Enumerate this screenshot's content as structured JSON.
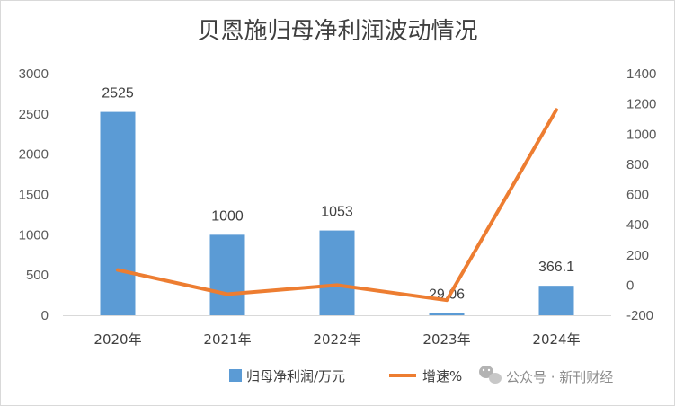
{
  "chart_data": {
    "type": "bar",
    "title": "贝恩施归母净利润波动情况",
    "categories": [
      "2020年",
      "2021年",
      "2022年",
      "2023年",
      "2024年"
    ],
    "series": [
      {
        "name": "归母净利润/万元",
        "type": "bar",
        "axis": "left",
        "color": "#5b9bd5",
        "values": [
          2525,
          1000,
          1053,
          29.06,
          366.1
        ],
        "labels": [
          "2525",
          "1000",
          "1053",
          "29.06",
          "366.1"
        ]
      },
      {
        "name": "增速%",
        "type": "line",
        "axis": "right",
        "color": "#ed7d31",
        "values": [
          100,
          -60,
          0,
          -100,
          1160
        ]
      }
    ],
    "ylim_left": [
      0,
      3000
    ],
    "yticks_left": [
      0,
      500,
      1000,
      1500,
      2000,
      2500,
      3000
    ],
    "ylim_right": [
      -200,
      1400
    ],
    "yticks_right": [
      -200,
      0,
      200,
      400,
      600,
      800,
      1000,
      1200,
      1400
    ],
    "grid": false,
    "legend_position": "bottom"
  },
  "watermark": {
    "text": "公众号 · 新刊财经",
    "icon": "wechat-icon"
  }
}
